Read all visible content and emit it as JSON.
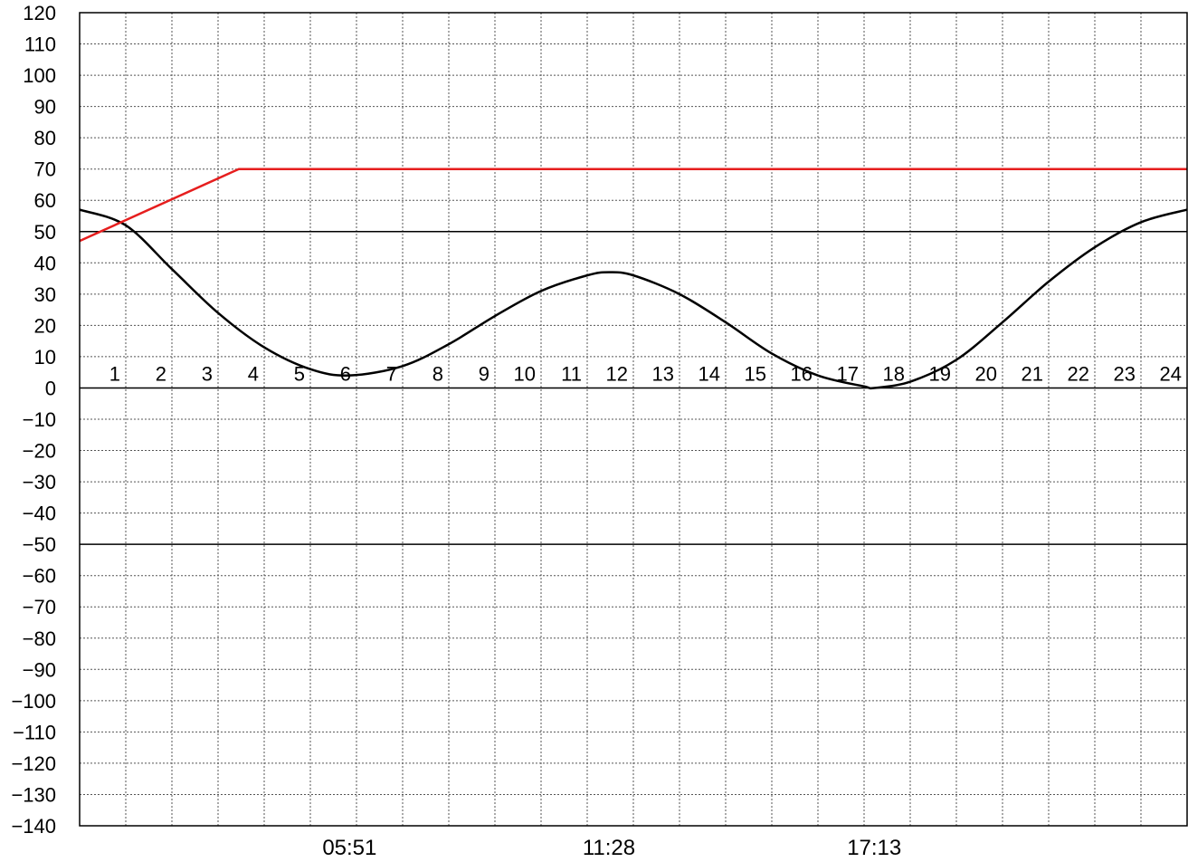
{
  "chart_data": {
    "type": "line",
    "title": "",
    "xlabel": "",
    "ylabel": "",
    "xlim": [
      0,
      24
    ],
    "ylim": [
      -140,
      120
    ],
    "grid": true,
    "y_ticks": [
      "120",
      "110",
      "100",
      "90",
      "80",
      "70",
      "60",
      "50",
      "40",
      "30",
      "20",
      "10",
      "0",
      "−10",
      "−20",
      "−30",
      "−40",
      "−50",
      "−60",
      "−70",
      "−80",
      "−90",
      "−100",
      "−110",
      "−120",
      "−130",
      "−140"
    ],
    "hour_labels": [
      "1",
      "2",
      "3",
      "4",
      "5",
      "6",
      "7",
      "8",
      "9",
      "10",
      "11",
      "12",
      "13",
      "14",
      "15",
      "16",
      "17",
      "18",
      "19",
      "20",
      "21",
      "22",
      "23",
      "24"
    ],
    "time_labels": [
      {
        "text": "05:51",
        "x": 5.85
      },
      {
        "text": "11:28",
        "x": 11.47
      },
      {
        "text": "17:13",
        "x": 17.22
      }
    ],
    "reference_lines": [
      50,
      0,
      -50
    ],
    "series": [
      {
        "color": "#000000",
        "x": [
          0,
          1,
          2,
          3,
          4,
          5,
          5.85,
          7,
          8,
          9,
          10,
          11,
          11.47,
          12,
          13,
          14,
          15,
          16,
          17,
          17.22,
          18,
          19,
          20,
          21,
          22,
          23,
          24
        ],
        "y": [
          57,
          52,
          38,
          24,
          13,
          6,
          4,
          7,
          14,
          23,
          31,
          36,
          37,
          36,
          30,
          21,
          11,
          4,
          0.5,
          0,
          2,
          9,
          21,
          34,
          45,
          53,
          57
        ]
      },
      {
        "color": "#e61e1e",
        "x": [
          0,
          3.45,
          24
        ],
        "y": [
          47,
          70,
          70
        ]
      }
    ]
  }
}
